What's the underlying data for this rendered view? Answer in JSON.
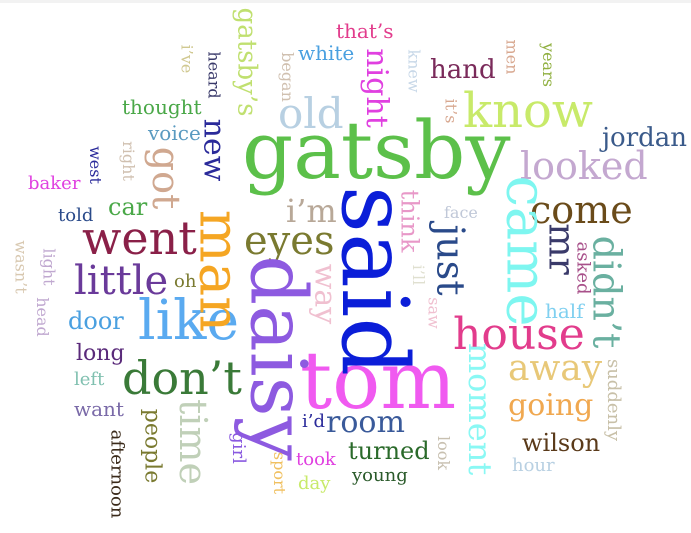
{
  "words": [
    {
      "text": "said",
      "color": "#0b1ed8"
    },
    {
      "text": "gatsby",
      "color": "#5cc04a"
    },
    {
      "text": "daisy",
      "color": "#8d5ae0"
    },
    {
      "text": "tom",
      "color": "#f05af0"
    },
    {
      "text": "man",
      "color": "#f5a623"
    },
    {
      "text": "know",
      "color": "#c8ea6a"
    },
    {
      "text": "came",
      "color": "#7ef6f0"
    },
    {
      "text": "like",
      "color": "#5aaaf0"
    },
    {
      "text": "house",
      "color": "#e23c8c"
    },
    {
      "text": "don’t",
      "color": "#3a7a38"
    },
    {
      "text": "went",
      "color": "#8a2048"
    },
    {
      "text": "looked",
      "color": "#c4a8d0"
    },
    {
      "text": "come",
      "color": "#6a4b1a"
    },
    {
      "text": "little",
      "color": "#6a3a9a"
    },
    {
      "text": "eyes",
      "color": "#7a7a30"
    },
    {
      "text": "old",
      "color": "#b8d0e2"
    },
    {
      "text": "just",
      "color": "#2a4a8a"
    },
    {
      "text": "didn’t",
      "color": "#6ab0a0"
    },
    {
      "text": "away",
      "color": "#e8c878"
    },
    {
      "text": "time",
      "color": "#c0d0b8"
    },
    {
      "text": "got",
      "color": "#d0a890"
    },
    {
      "text": "mr",
      "color": "#3a3a6a"
    },
    {
      "text": "i’m",
      "color": "#b8a898"
    },
    {
      "text": "new",
      "color": "#2a2a9a"
    },
    {
      "text": "moment",
      "color": "#8af8f4"
    },
    {
      "text": "room",
      "color": "#3a5a9a"
    },
    {
      "text": "going",
      "color": "#f0a850"
    },
    {
      "text": "way",
      "color": "#f0c0d0"
    },
    {
      "text": "night",
      "color": "#e040e0"
    },
    {
      "text": "hand",
      "color": "#7a2a5a"
    },
    {
      "text": "jordan",
      "color": "#3a5a8a"
    },
    {
      "text": "gatsby’s",
      "color": "#c0e070"
    },
    {
      "text": "door",
      "color": "#4aa0e0"
    },
    {
      "text": "car",
      "color": "#4aa848"
    },
    {
      "text": "think",
      "color": "#e898c8"
    },
    {
      "text": "wilson",
      "color": "#5a3a1a"
    },
    {
      "text": "turned",
      "color": "#2a6a2a"
    },
    {
      "text": "people",
      "color": "#7a7a30"
    },
    {
      "text": "long",
      "color": "#5a2a7a"
    },
    {
      "text": "thought",
      "color": "#4aa848"
    },
    {
      "text": "voice",
      "color": "#5a9ac0"
    },
    {
      "text": "want",
      "color": "#7a6aa8"
    },
    {
      "text": "white",
      "color": "#4aa0e0"
    },
    {
      "text": "that’s",
      "color": "#e23c8c"
    },
    {
      "text": "asked",
      "color": "#a8508a"
    },
    {
      "text": "suddenly",
      "color": "#c8c0a8"
    },
    {
      "text": "half",
      "color": "#80d0f0"
    },
    {
      "text": "baker",
      "color": "#e040e0"
    },
    {
      "text": "told",
      "color": "#2a4a8a"
    },
    {
      "text": "oh",
      "color": "#7a7a30"
    },
    {
      "text": "left",
      "color": "#80c0b0"
    },
    {
      "text": "afternoon",
      "color": "#3a2a1a"
    },
    {
      "text": "girl",
      "color": "#8a5ae0"
    },
    {
      "text": "i’d",
      "color": "#2a2a9a"
    },
    {
      "text": "took",
      "color": "#e040e0"
    },
    {
      "text": "young",
      "color": "#2a5a2a"
    },
    {
      "text": "day",
      "color": "#c8ea6a"
    },
    {
      "text": "sport",
      "color": "#f0c060"
    },
    {
      "text": "look",
      "color": "#c8c0b0"
    },
    {
      "text": "hour",
      "color": "#b8d0e2"
    },
    {
      "text": "face",
      "color": "#c0c8d8"
    },
    {
      "text": "i’ll",
      "color": "#e0e0d0"
    },
    {
      "text": "saw",
      "color": "#f0c0d0"
    },
    {
      "text": "it’s",
      "color": "#d8a890"
    },
    {
      "text": "knew",
      "color": "#c8d8e8"
    },
    {
      "text": "men",
      "color": "#d8a890"
    },
    {
      "text": "years",
      "color": "#90b040"
    },
    {
      "text": "began",
      "color": "#d0c0b0"
    },
    {
      "text": "heard",
      "color": "#3a3a6a"
    },
    {
      "text": "i’ve",
      "color": "#d0c890"
    },
    {
      "text": "right",
      "color": "#d0c0b0"
    },
    {
      "text": "west",
      "color": "#2a2a9a"
    },
    {
      "text": "light",
      "color": "#c0a8d0"
    },
    {
      "text": "head",
      "color": "#c0a8d0"
    },
    {
      "text": "wasn’t",
      "color": "#d8c8b0"
    }
  ]
}
